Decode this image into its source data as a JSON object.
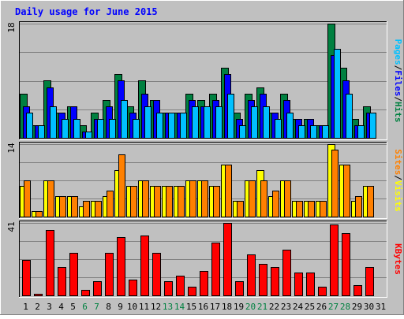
{
  "chart_data": {
    "type": "bar",
    "title": "Daily usage for June 2015",
    "categories": [
      "1",
      "2",
      "3",
      "4",
      "5",
      "6",
      "7",
      "8",
      "9",
      "10",
      "11",
      "12",
      "13",
      "14",
      "15",
      "16",
      "17",
      "18",
      "19",
      "20",
      "21",
      "22",
      "23",
      "24",
      "25",
      "26",
      "27",
      "28",
      "29",
      "30",
      "31"
    ],
    "weekend_days": [
      6,
      7,
      13,
      14,
      20,
      21,
      27,
      28
    ],
    "panels": [
      {
        "id": "pages-files-hits",
        "max_label": "18",
        "ymax": 18,
        "ylabel_parts": [
          "Pages",
          "/",
          "Files",
          "/",
          "Hits"
        ],
        "series": [
          {
            "name": "Hits",
            "color": "#008040",
            "values": [
              7,
              2,
              9,
              4,
              5,
              2,
              4,
              6,
              10,
              5,
              9,
              6,
              4,
              4,
              7,
              6,
              7,
              11,
              4,
              7,
              8,
              4,
              7,
              3,
              3,
              2,
              18,
              11,
              3,
              5,
              0
            ]
          },
          {
            "name": "Files",
            "color": "#0000ff",
            "values": [
              5,
              2,
              8,
              4,
              5,
              1,
              3,
              5,
              9,
              4,
              7,
              6,
              4,
              4,
              6,
              5,
              6,
              10,
              3,
              6,
              7,
              4,
              6,
              3,
              3,
              2,
              13,
              9,
              2,
              4,
              0
            ]
          },
          {
            "name": "Pages",
            "color": "#00c0ff",
            "values": [
              4,
              2,
              5,
              3,
              3,
              1,
              3,
              3,
              6,
              3,
              5,
              4,
              4,
              4,
              5,
              5,
              5,
              7,
              2,
              5,
              5,
              3,
              4,
              2,
              2,
              2,
              14,
              7,
              2,
              4,
              0
            ]
          }
        ]
      },
      {
        "id": "sites-visits",
        "max_label": "14",
        "ymax": 14,
        "ylabel_parts": [
          "Sites",
          "/",
          "Visits"
        ],
        "series": [
          {
            "name": "Visits",
            "color": "#ffff00",
            "values": [
              6,
              1,
              7,
              4,
              4,
              2,
              3,
              4,
              9,
              6,
              7,
              6,
              6,
              6,
              7,
              7,
              6,
              10,
              3,
              7,
              9,
              4,
              7,
              3,
              3,
              3,
              14,
              10,
              3,
              6,
              0
            ]
          },
          {
            "name": "Sites",
            "color": "#ff8000",
            "values": [
              7,
              1,
              7,
              4,
              4,
              3,
              3,
              5,
              12,
              6,
              7,
              6,
              6,
              6,
              7,
              7,
              6,
              10,
              3,
              7,
              7,
              5,
              7,
              3,
              3,
              3,
              13,
              10,
              4,
              6,
              0
            ]
          }
        ]
      },
      {
        "id": "kbytes",
        "max_label": "41",
        "ymax": 41,
        "ylabel_parts": [
          "KBytes"
        ],
        "series": [
          {
            "name": "KBytes",
            "color": "#ff0000",
            "values": [
              20,
              1,
              37,
              16,
              24,
              3,
              8,
              24,
              33,
              9,
              34,
              24,
              8,
              11,
              5,
              14,
              30,
              41,
              8,
              23,
              18,
              16,
              26,
              13,
              13,
              5,
              40,
              35,
              6,
              16,
              0
            ]
          }
        ]
      }
    ]
  }
}
